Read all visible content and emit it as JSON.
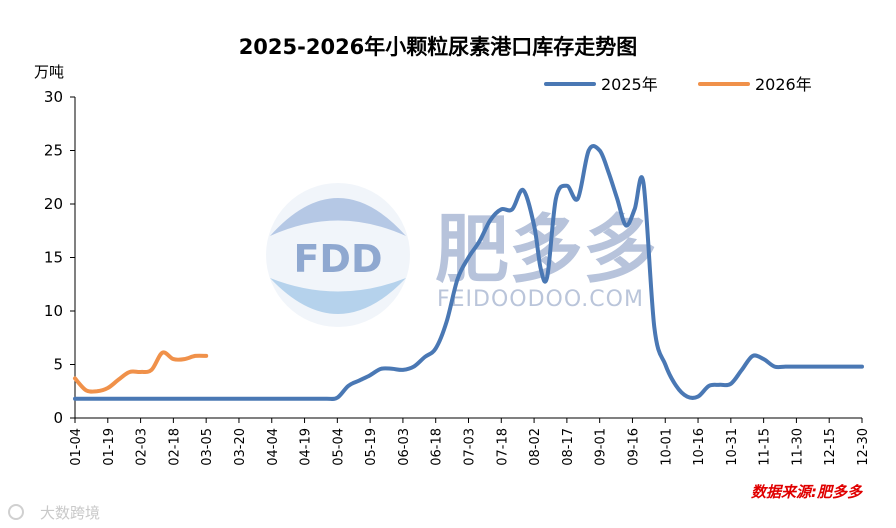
{
  "chart_data": {
    "type": "line",
    "title": "2025-2026年小颗粒尿素港口库存走势图",
    "ylabel": "万吨",
    "xlabel": "",
    "ylim": [
      0,
      30
    ],
    "yticks": [
      0,
      5,
      10,
      15,
      20,
      25,
      30
    ],
    "xticks": [
      "01-04",
      "01-19",
      "02-03",
      "02-18",
      "03-05",
      "03-20",
      "04-04",
      "04-19",
      "05-04",
      "05-19",
      "06-03",
      "06-18",
      "07-03",
      "07-18",
      "08-02",
      "08-17",
      "09-01",
      "09-16",
      "10-01",
      "10-16",
      "10-31",
      "11-15",
      "11-30",
      "12-15",
      "12-30"
    ],
    "legend_position": "top-right",
    "source": "数据来源:肥多多",
    "series": [
      {
        "name": "2025年",
        "color": "#4a78b4",
        "x": [
          0,
          15,
          30,
          45,
          60,
          75,
          90,
          105,
          115,
          120,
          125,
          130,
          135,
          140,
          145,
          150,
          155,
          160,
          165,
          170,
          175,
          180,
          185,
          190,
          195,
          200,
          205,
          210,
          213,
          216,
          220,
          225,
          230,
          235,
          240,
          244,
          248,
          252,
          256,
          260,
          265,
          270,
          275,
          280,
          285,
          290,
          295,
          300,
          305,
          310,
          315,
          320,
          325,
          330,
          335,
          340,
          345,
          350,
          355,
          360
        ],
        "values": [
          1.8,
          1.8,
          1.8,
          1.8,
          1.8,
          1.8,
          1.8,
          1.8,
          1.8,
          1.9,
          3.0,
          3.5,
          4.0,
          4.6,
          4.6,
          4.5,
          4.8,
          5.7,
          6.5,
          9.0,
          13.0,
          15.0,
          16.5,
          18.5,
          19.5,
          19.5,
          21.3,
          18.0,
          14.0,
          13.2,
          20.5,
          21.7,
          20.5,
          25.0,
          25.0,
          23.0,
          20.5,
          18.0,
          19.5,
          22.0,
          8.5,
          5.0,
          3.0,
          2.0,
          2.0,
          3.0,
          3.1,
          3.2,
          4.5,
          5.8,
          5.5,
          4.8,
          4.8,
          4.8,
          4.8,
          4.8,
          4.8,
          4.8,
          4.8,
          4.8
        ]
      },
      {
        "name": "2026年",
        "color": "#f0914a",
        "x": [
          0,
          5,
          10,
          15,
          20,
          25,
          30,
          35,
          40,
          45,
          50,
          55,
          60
        ],
        "values": [
          3.7,
          2.6,
          2.5,
          2.8,
          3.6,
          4.3,
          4.3,
          4.5,
          6.1,
          5.5,
          5.5,
          5.8,
          5.8
        ]
      }
    ]
  },
  "watermark": {
    "logo_text": "FDD",
    "name_cn": "肥多多",
    "name_en": "FEIDOODOO.COM"
  },
  "corner_mark": "大数跨境",
  "colors": {
    "axis": "#000000",
    "series_2025": "#4a78b4",
    "series_2026": "#f0914a",
    "source_text": "#e00000"
  }
}
